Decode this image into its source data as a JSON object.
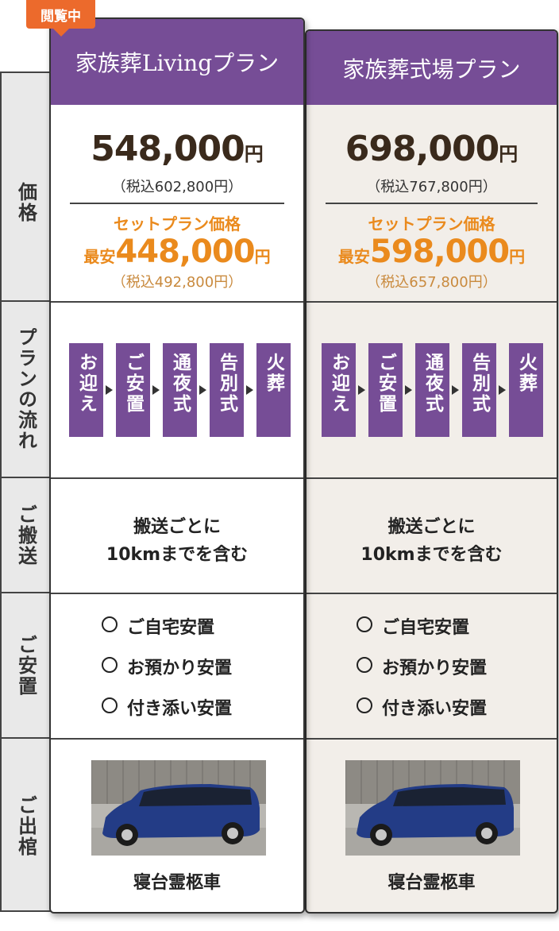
{
  "badge": "閲覧中",
  "row_labels": [
    "価格",
    "プランの流れ",
    "ご搬送",
    "ご安置",
    "ご出棺"
  ],
  "plans": [
    {
      "name": "家族葬Livingプラン",
      "price": "548,000",
      "yen": "円",
      "tax": "（税込602,800円）",
      "set_label": "セットプラン価格",
      "min": "最安",
      "set_price": "448,000",
      "set_yen": "円",
      "set_tax": "（税込492,800円）",
      "flow": [
        "お迎え",
        "ご安置",
        "通夜式",
        "告別式",
        "火葬"
      ],
      "transport": [
        "搬送ごとに",
        "10kmまでを含む"
      ],
      "placement": [
        "ご自宅安置",
        "お預かり安置",
        "付き添い安置"
      ],
      "car": "寝台霊柩車"
    },
    {
      "name": "家族葬式場プラン",
      "price": "698,000",
      "yen": "円",
      "tax": "（税込767,800円）",
      "set_label": "セットプラン価格",
      "min": "最安",
      "set_price": "598,000",
      "set_yen": "円",
      "set_tax": "（税込657,800円）",
      "flow": [
        "お迎え",
        "ご安置",
        "通夜式",
        "告別式",
        "火葬"
      ],
      "transport": [
        "搬送ごとに",
        "10kmまでを含む"
      ],
      "placement": [
        "ご自宅安置",
        "お預かり安置",
        "付き添い安置"
      ],
      "car": "寝台霊柩車"
    }
  ]
}
